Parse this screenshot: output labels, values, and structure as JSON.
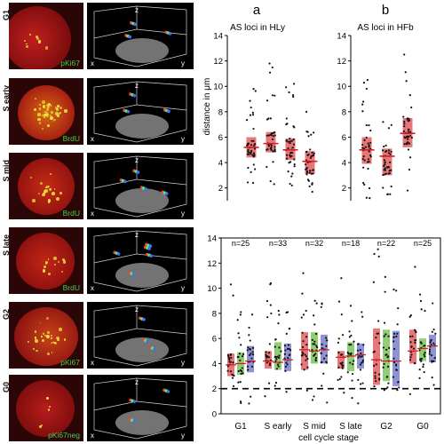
{
  "stages": [
    {
      "label": "G1",
      "stain": "pKi67"
    },
    {
      "label": "S early",
      "stain": "BrdU"
    },
    {
      "label": "S mid",
      "stain": "BrdU"
    },
    {
      "label": "S late",
      "stain": "BrdU"
    },
    {
      "label": "G2",
      "stain": "pKi67"
    },
    {
      "label": "G0",
      "stain": "pKi67neg"
    }
  ],
  "axes3d": {
    "x": "x",
    "y": "y",
    "z": "z"
  },
  "panel_a": {
    "letter": "a",
    "title": "AS loci in HLy"
  },
  "panel_b": {
    "letter": "b",
    "title": "AS loci in HFb"
  },
  "ylabel": "distance in μm",
  "yticks": [
    "2",
    "4",
    "6",
    "8",
    "10",
    "12",
    "14"
  ],
  "bottom_yticks": [
    "0",
    "2",
    "4",
    "6",
    "8",
    "10",
    "12",
    "14"
  ],
  "counts": [
    "n=25",
    "n=33",
    "n=32",
    "n=18",
    "n=22",
    "n=25"
  ],
  "categories": [
    "G1",
    "S early",
    "S mid",
    "S late",
    "G2",
    "G0"
  ],
  "xlabel": "cell cycle stage",
  "colors": {
    "red": "#e8777a",
    "green": "#8fce72",
    "blue": "#8e93d6",
    "median": "#d42020",
    "bg_cell": "#2a0606"
  },
  "chart_data": [
    {
      "type": "scatter",
      "title": "AS loci in HLy",
      "ylabel": "distance in μm",
      "ylim": [
        1,
        14
      ],
      "series": [
        {
          "median": 5.2,
          "q1": 4.4,
          "q3": 6.0,
          "min": 2.4,
          "max": 9.8
        },
        {
          "median": 5.5,
          "q1": 4.8,
          "q3": 6.4,
          "min": 2.3,
          "max": 11.8
        },
        {
          "median": 5.0,
          "q1": 4.2,
          "q3": 5.9,
          "min": 2.2,
          "max": 10.2
        },
        {
          "median": 4.1,
          "q1": 3.1,
          "q3": 4.9,
          "min": 1.7,
          "max": 8.0
        }
      ]
    },
    {
      "type": "scatter",
      "title": "AS loci in HFb",
      "ylim": [
        1,
        14
      ],
      "series": [
        {
          "median": 5.0,
          "q1": 3.9,
          "q3": 6.0,
          "min": 1.2,
          "max": 10.5
        },
        {
          "median": 4.5,
          "q1": 3.0,
          "q3": 5.1,
          "min": 1.5,
          "max": 7.2
        },
        {
          "median": 6.3,
          "q1": 5.2,
          "q3": 7.5,
          "min": 1.8,
          "max": 12.5
        }
      ]
    },
    {
      "type": "scatter",
      "xlabel": "cell cycle stage",
      "categories": [
        "G1",
        "S early",
        "S mid",
        "S late",
        "G2",
        "G0"
      ],
      "ylim": [
        0,
        14
      ],
      "reference_line": 2,
      "series": [
        {
          "name": "G1",
          "n": 25,
          "boxes": [
            {
              "median": 3.9,
              "q1": 3.0,
              "q3": 4.8
            },
            {
              "median": 4.0,
              "q1": 3.1,
              "q3": 4.9
            },
            {
              "median": 4.2,
              "q1": 3.3,
              "q3": 5.4
            }
          ],
          "max": 10.3
        },
        {
          "name": "S early",
          "n": 33,
          "boxes": [
            {
              "median": 4.2,
              "q1": 3.6,
              "q3": 5.0
            },
            {
              "median": 4.1,
              "q1": 3.5,
              "q3": 5.7
            },
            {
              "median": 4.3,
              "q1": 3.4,
              "q3": 5.6
            }
          ],
          "max": 10.4
        },
        {
          "name": "S mid",
          "n": 32,
          "boxes": [
            {
              "median": 5.1,
              "q1": 3.5,
              "q3": 6.5
            },
            {
              "median": 5.0,
              "q1": 4.0,
              "q3": 6.5
            },
            {
              "median": 5.1,
              "q1": 4.0,
              "q3": 6.3
            }
          ],
          "max": 11.2
        },
        {
          "name": "S late",
          "n": 18,
          "boxes": [
            {
              "median": 4.5,
              "q1": 3.6,
              "q3": 5.0
            },
            {
              "median": 4.6,
              "q1": 3.4,
              "q3": 5.7
            },
            {
              "median": 4.7,
              "q1": 3.6,
              "q3": 5.6
            }
          ],
          "max": 10.8
        },
        {
          "name": "G2",
          "n": 22,
          "boxes": [
            {
              "median": 4.3,
              "q1": 2.3,
              "q3": 6.8
            },
            {
              "median": 4.2,
              "q1": 2.6,
              "q3": 6.7
            },
            {
              "median": 4.2,
              "q1": 2.2,
              "q3": 6.6
            }
          ],
          "max": 13.1
        },
        {
          "name": "G0",
          "n": 25,
          "boxes": [
            {
              "median": 5.0,
              "q1": 4.0,
              "q3": 6.7
            },
            {
              "median": 5.2,
              "q1": 4.2,
              "q3": 6.0
            },
            {
              "median": 5.4,
              "q1": 4.1,
              "q3": 6.3
            }
          ],
          "max": 11.7
        }
      ]
    }
  ]
}
